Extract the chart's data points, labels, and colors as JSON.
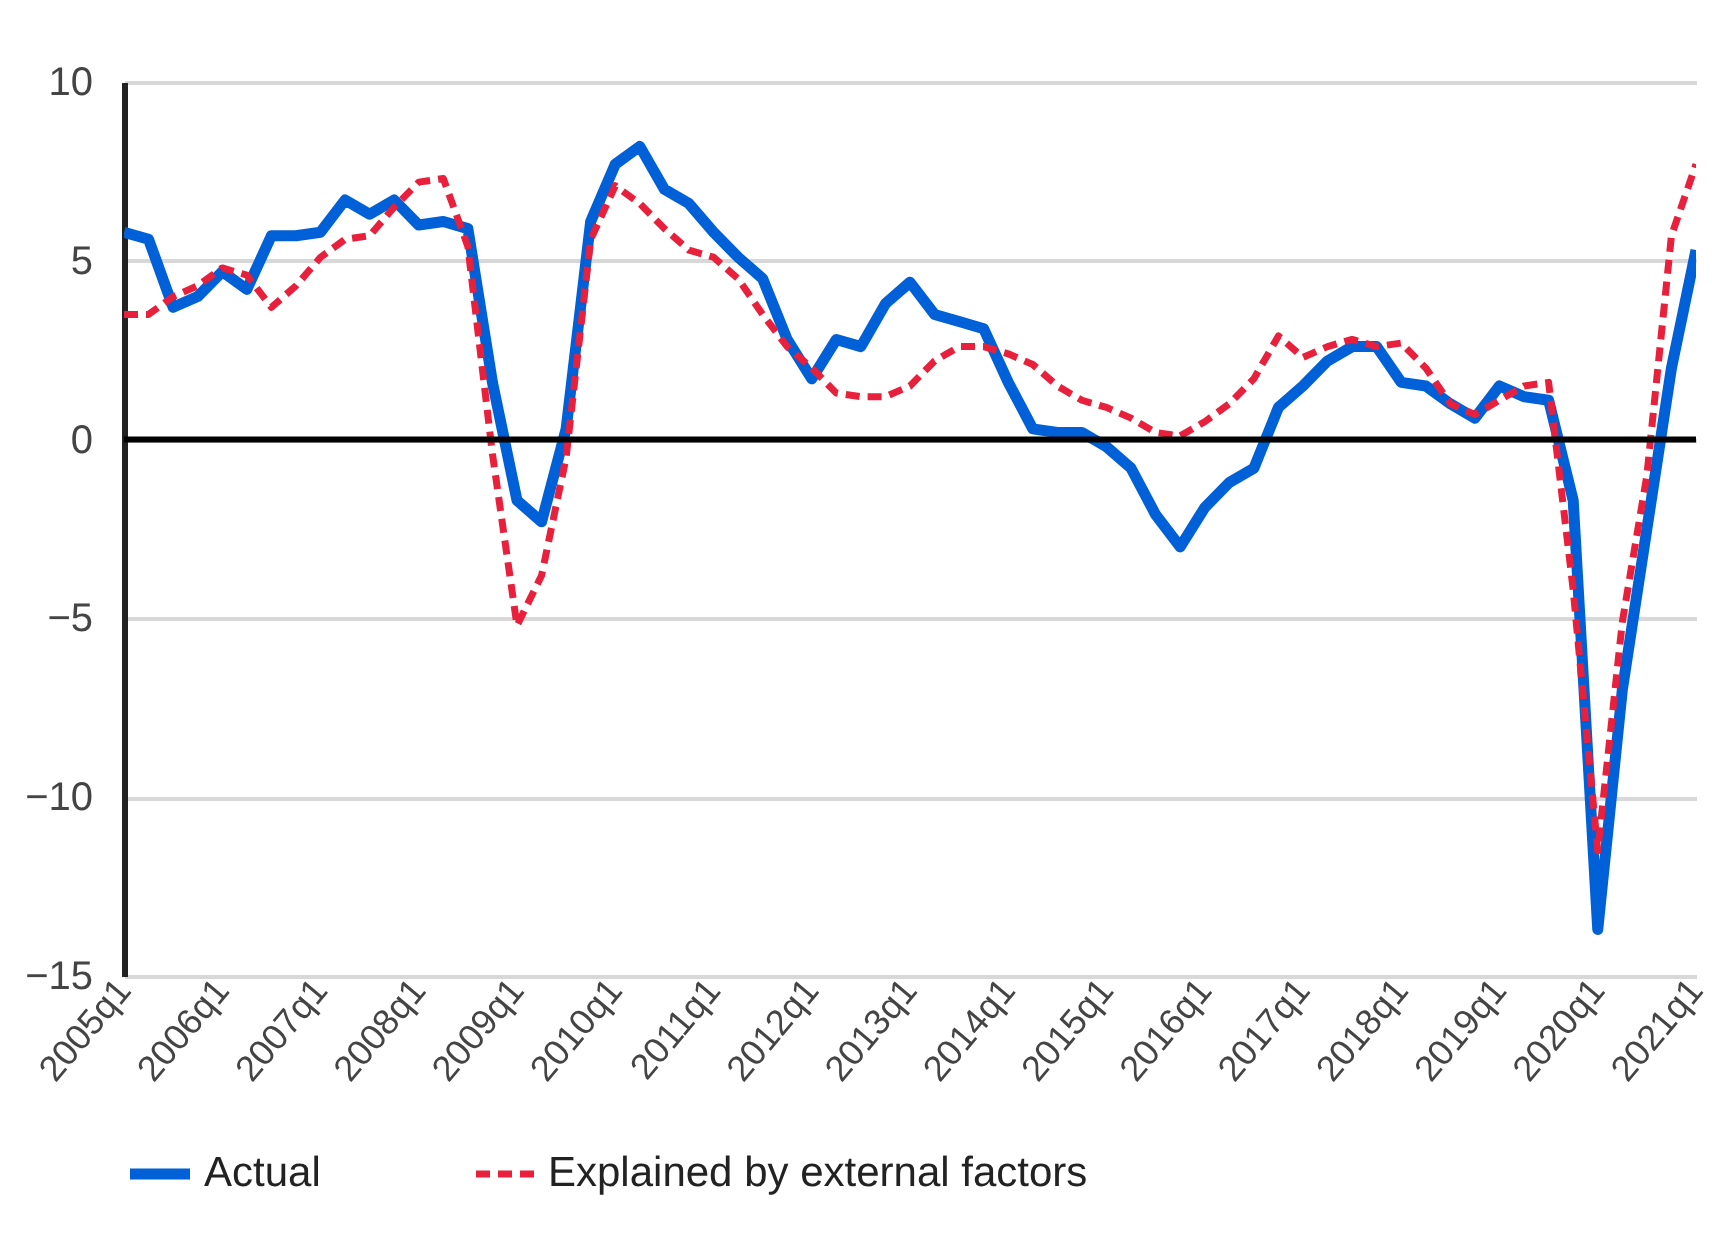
{
  "chart_data": {
    "type": "line",
    "categories": [
      "2005q1",
      null,
      null,
      null,
      "2006q1",
      null,
      null,
      null,
      "2007q1",
      null,
      null,
      null,
      "2008q1",
      null,
      null,
      null,
      "2009q1",
      null,
      null,
      null,
      "2010q1",
      null,
      null,
      null,
      "2011q1",
      null,
      null,
      null,
      "2012q1",
      null,
      null,
      null,
      "2013q1",
      null,
      null,
      null,
      "2014q1",
      null,
      null,
      null,
      "2015q1",
      null,
      null,
      null,
      "2016q1",
      null,
      null,
      null,
      "2017q1",
      null,
      null,
      null,
      "2018q1",
      null,
      null,
      null,
      "2019q1",
      null,
      null,
      null,
      "2020q1",
      null,
      null,
      null,
      "2021q1"
    ],
    "series": [
      {
        "name": "Actual",
        "color": "#0060d8",
        "line_style": "solid",
        "values": [
          5.8,
          5.6,
          3.7,
          4.0,
          4.7,
          4.2,
          5.7,
          5.7,
          5.8,
          6.7,
          6.3,
          6.7,
          6.0,
          6.1,
          5.9,
          1.6,
          -1.7,
          -2.3,
          0.3,
          6.1,
          7.7,
          8.2,
          7.0,
          6.6,
          5.8,
          5.1,
          4.5,
          2.8,
          1.7,
          2.8,
          2.6,
          3.8,
          4.4,
          3.5,
          3.3,
          3.1,
          1.6,
          0.3,
          0.2,
          0.2,
          -0.2,
          -0.8,
          -2.1,
          -3.0,
          -1.9,
          -1.2,
          -0.8,
          0.9,
          1.5,
          2.2,
          2.6,
          2.6,
          1.6,
          1.5,
          1.0,
          0.6,
          1.5,
          1.2,
          1.1,
          -1.7,
          -13.7,
          -7.0,
          -2.5,
          2.0,
          5.3
        ]
      },
      {
        "name": "Explained by external factors",
        "color": "#e8203c",
        "line_style": "dashed",
        "values": [
          3.5,
          3.5,
          4.0,
          4.3,
          4.8,
          4.6,
          3.7,
          4.3,
          5.1,
          5.6,
          5.7,
          6.5,
          7.2,
          7.3,
          5.4,
          -0.4,
          -5.2,
          -3.8,
          -0.5,
          5.6,
          7.1,
          6.6,
          5.9,
          5.3,
          5.1,
          4.5,
          3.5,
          2.6,
          2.0,
          1.3,
          1.2,
          1.2,
          1.5,
          2.2,
          2.6,
          2.6,
          2.4,
          2.1,
          1.5,
          1.1,
          0.9,
          0.6,
          0.2,
          0.1,
          0.5,
          1.0,
          1.7,
          2.9,
          2.3,
          2.6,
          2.8,
          2.6,
          2.7,
          2.0,
          1.0,
          0.7,
          1.1,
          1.5,
          1.6,
          -4.2,
          -11.5,
          -5.1,
          -1.0,
          5.7,
          7.7
        ]
      }
    ],
    "ylim": [
      -15,
      10
    ],
    "yticks": [
      -15,
      -10,
      -5,
      0,
      5,
      10
    ],
    "grid": "y",
    "legend": "bottom",
    "ref_lines": [
      {
        "axis": "y",
        "value": 0,
        "color": "#000000"
      }
    ]
  }
}
